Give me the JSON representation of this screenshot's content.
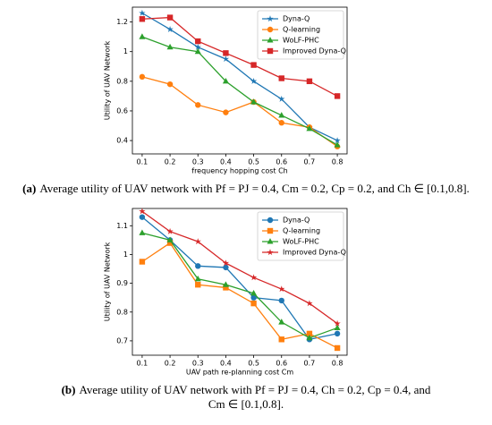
{
  "chart_data": [
    {
      "type": "line",
      "xlabel": "frequency hopping cost Ch",
      "ylabel": "Utility of UAV Network",
      "x": [
        0.1,
        0.2,
        0.3,
        0.4,
        0.5,
        0.6,
        0.7,
        0.8
      ],
      "xlim": [
        0.065,
        0.835
      ],
      "xticks": [
        0.1,
        0.2,
        0.3,
        0.4,
        0.5,
        0.6,
        0.7,
        0.8
      ],
      "ylim": [
        0.31,
        1.3
      ],
      "yticks": [
        0.4,
        0.6,
        0.8,
        1.0,
        1.2
      ],
      "legend": "upper right",
      "series": [
        {
          "name": "Dyna-Q",
          "color": "#1f77b4",
          "marker": "star",
          "values": [
            1.26,
            1.15,
            1.03,
            0.95,
            0.8,
            0.68,
            0.49,
            0.4
          ]
        },
        {
          "name": "Q-learning",
          "color": "#ff7f0e",
          "marker": "circle",
          "values": [
            0.83,
            0.78,
            0.64,
            0.59,
            0.66,
            0.52,
            0.49,
            0.36
          ]
        },
        {
          "name": "WoLF-PHC",
          "color": "#2ca02c",
          "marker": "triangle",
          "values": [
            1.1,
            1.03,
            1.0,
            0.8,
            0.66,
            0.57,
            0.48,
            0.37
          ]
        },
        {
          "name": "Improved Dyna-Q",
          "color": "#d62728",
          "marker": "square",
          "values": [
            1.22,
            1.23,
            1.07,
            0.99,
            0.91,
            0.82,
            0.8,
            0.7
          ]
        }
      ]
    },
    {
      "type": "line",
      "xlabel": "UAV path re-planning cost Cm",
      "ylabel": "Utility of UAV Network",
      "x": [
        0.1,
        0.2,
        0.3,
        0.4,
        0.5,
        0.6,
        0.7,
        0.8
      ],
      "xlim": [
        0.065,
        0.835
      ],
      "xticks": [
        0.1,
        0.2,
        0.3,
        0.4,
        0.5,
        0.6,
        0.7,
        0.8
      ],
      "ylim": [
        0.65,
        1.16
      ],
      "yticks": [
        0.7,
        0.8,
        0.9,
        1.0,
        1.1
      ],
      "legend": "upper right",
      "series": [
        {
          "name": "Dyna-Q",
          "color": "#1f77b4",
          "marker": "circle",
          "values": [
            1.13,
            1.05,
            0.96,
            0.955,
            0.85,
            0.84,
            0.705,
            0.725
          ]
        },
        {
          "name": "Q-learning",
          "color": "#ff7f0e",
          "marker": "square",
          "values": [
            0.975,
            1.04,
            0.895,
            0.885,
            0.83,
            0.705,
            0.725,
            0.675
          ]
        },
        {
          "name": "WoLF-PHC",
          "color": "#2ca02c",
          "marker": "triangle",
          "values": [
            1.075,
            1.05,
            0.915,
            0.895,
            0.865,
            0.765,
            0.71,
            0.745
          ]
        },
        {
          "name": "Improved Dyna-Q",
          "color": "#d62728",
          "marker": "star",
          "values": [
            1.15,
            1.08,
            1.045,
            0.97,
            0.92,
            0.88,
            0.83,
            0.76
          ]
        }
      ]
    }
  ],
  "captions": [
    {
      "label": "(a)",
      "text": "Average utility of UAV network with Pf = PJ = 0.4, Cm = 0.2, Cp = 0.2, and Ch ∈ [0.1,0.8]."
    },
    {
      "label": "(b)",
      "text": "Average utility of UAV network with Pf = PJ = 0.4, Ch = 0.2, Cp = 0.4, and Cm ∈ [0.1,0.8]."
    }
  ]
}
